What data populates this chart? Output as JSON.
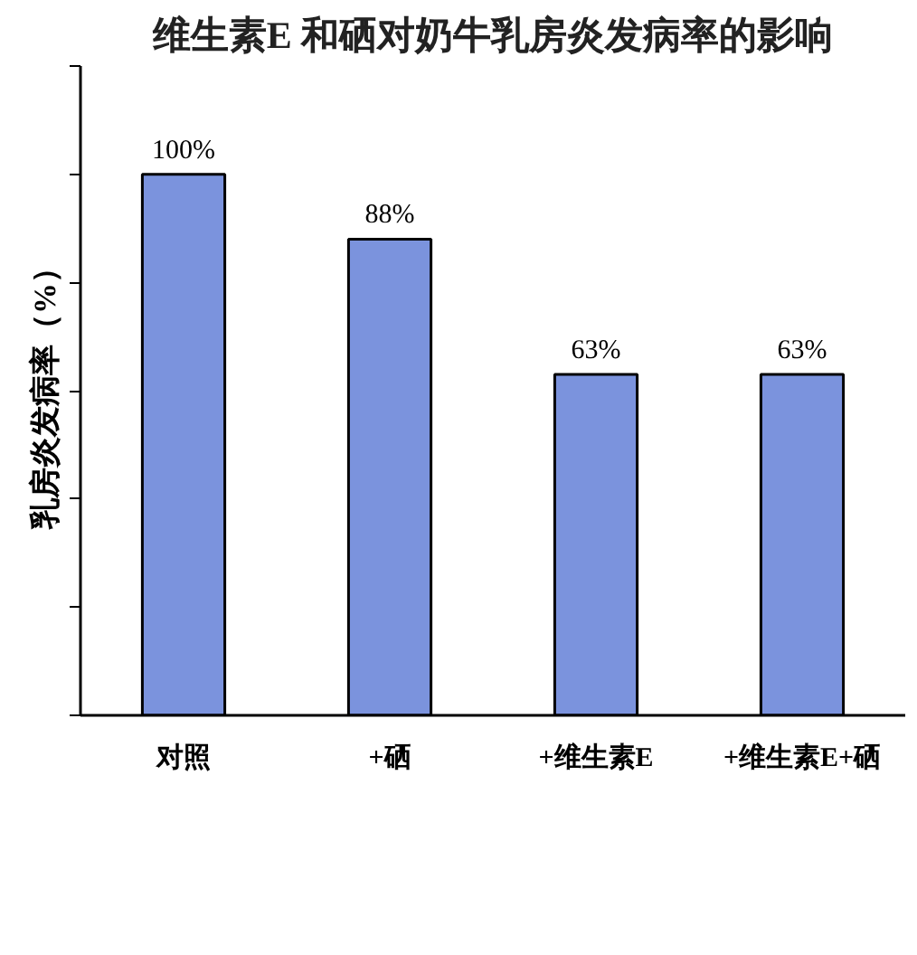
{
  "chart_data": {
    "type": "bar",
    "title": "维生素E 和硒对奶牛乳房炎发病率的影响",
    "ylabel": "乳房炎发病率（%）",
    "categories": [
      "对照",
      "+硒",
      "+维生素E",
      "+维生素E+硒"
    ],
    "values": [
      100,
      88,
      63,
      63
    ],
    "value_labels": [
      "100%",
      "88%",
      "63%",
      "63%"
    ],
    "color": "#7b93dd",
    "ylim": [
      0,
      120
    ],
    "yticks": [
      0,
      20,
      40,
      60,
      80,
      100,
      120
    ],
    "tick_labels": "x"
  }
}
